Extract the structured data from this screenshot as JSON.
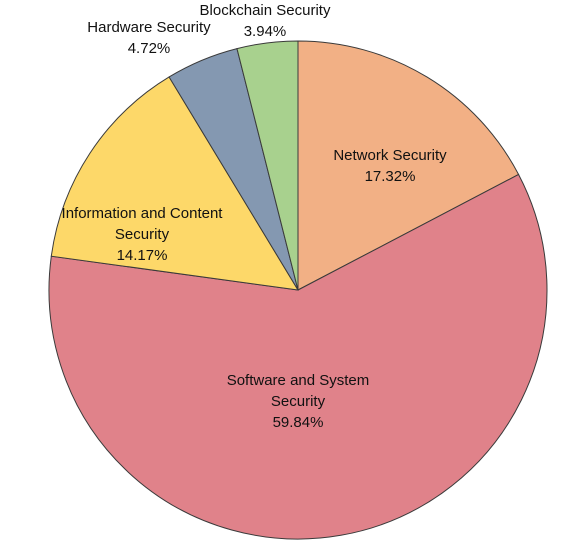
{
  "chart_data": {
    "type": "pie",
    "title": "",
    "slices": [
      {
        "label_lines": [
          "Network Security"
        ],
        "value": 17.32,
        "value_text": "17.32%",
        "color": "#f2b085"
      },
      {
        "label_lines": [
          "Software and System",
          "Security"
        ],
        "value": 59.84,
        "value_text": "59.84%",
        "color": "#e0828a"
      },
      {
        "label_lines": [
          "Information and Content",
          "Security"
        ],
        "value": 14.17,
        "value_text": "14.17%",
        "color": "#fdd869"
      },
      {
        "label_lines": [
          "Hardware Security"
        ],
        "value": 4.72,
        "value_text": "4.72%",
        "color": "#8498b1"
      },
      {
        "label_lines": [
          "Blockchain Security"
        ],
        "value": 3.94,
        "value_text": "3.94%",
        "color": "#a8d18e"
      }
    ],
    "start_angle_deg": 0,
    "direction": "clockwise",
    "legend": "none",
    "label_placement": "inside-and-outside"
  }
}
